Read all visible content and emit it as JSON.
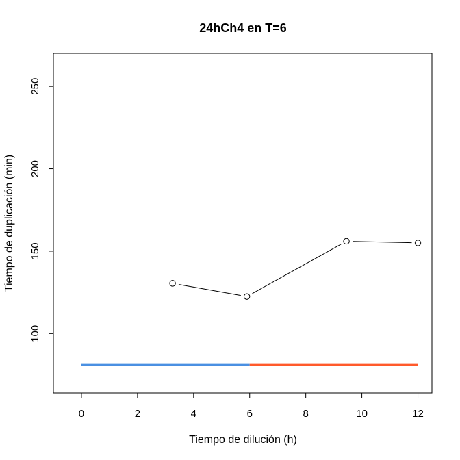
{
  "chart_data": {
    "type": "line",
    "title": "24hCh4 en T=6",
    "xlabel": "Tiempo de dilución (h)",
    "ylabel": "Tiempo de duplicación (min)",
    "xlim": [
      -1,
      12.5
    ],
    "ylim": [
      64,
      270
    ],
    "x_ticks": [
      0,
      2,
      4,
      6,
      8,
      10,
      12
    ],
    "y_ticks": [
      100,
      150,
      200,
      250
    ],
    "series": [
      {
        "x": [
          3.25,
          5.9,
          9.45,
          12.0
        ],
        "y": [
          130.5,
          122.5,
          156.0,
          155.0
        ],
        "color": "#000000",
        "marker": "open-circle"
      }
    ],
    "reference_lines": [
      {
        "x": [
          0,
          6
        ],
        "y": [
          81,
          81
        ],
        "color": "#4a90e2"
      },
      {
        "x": [
          6,
          12
        ],
        "y": [
          81,
          81
        ],
        "color": "#ff5a2b"
      }
    ],
    "grid": false,
    "legend": false
  }
}
